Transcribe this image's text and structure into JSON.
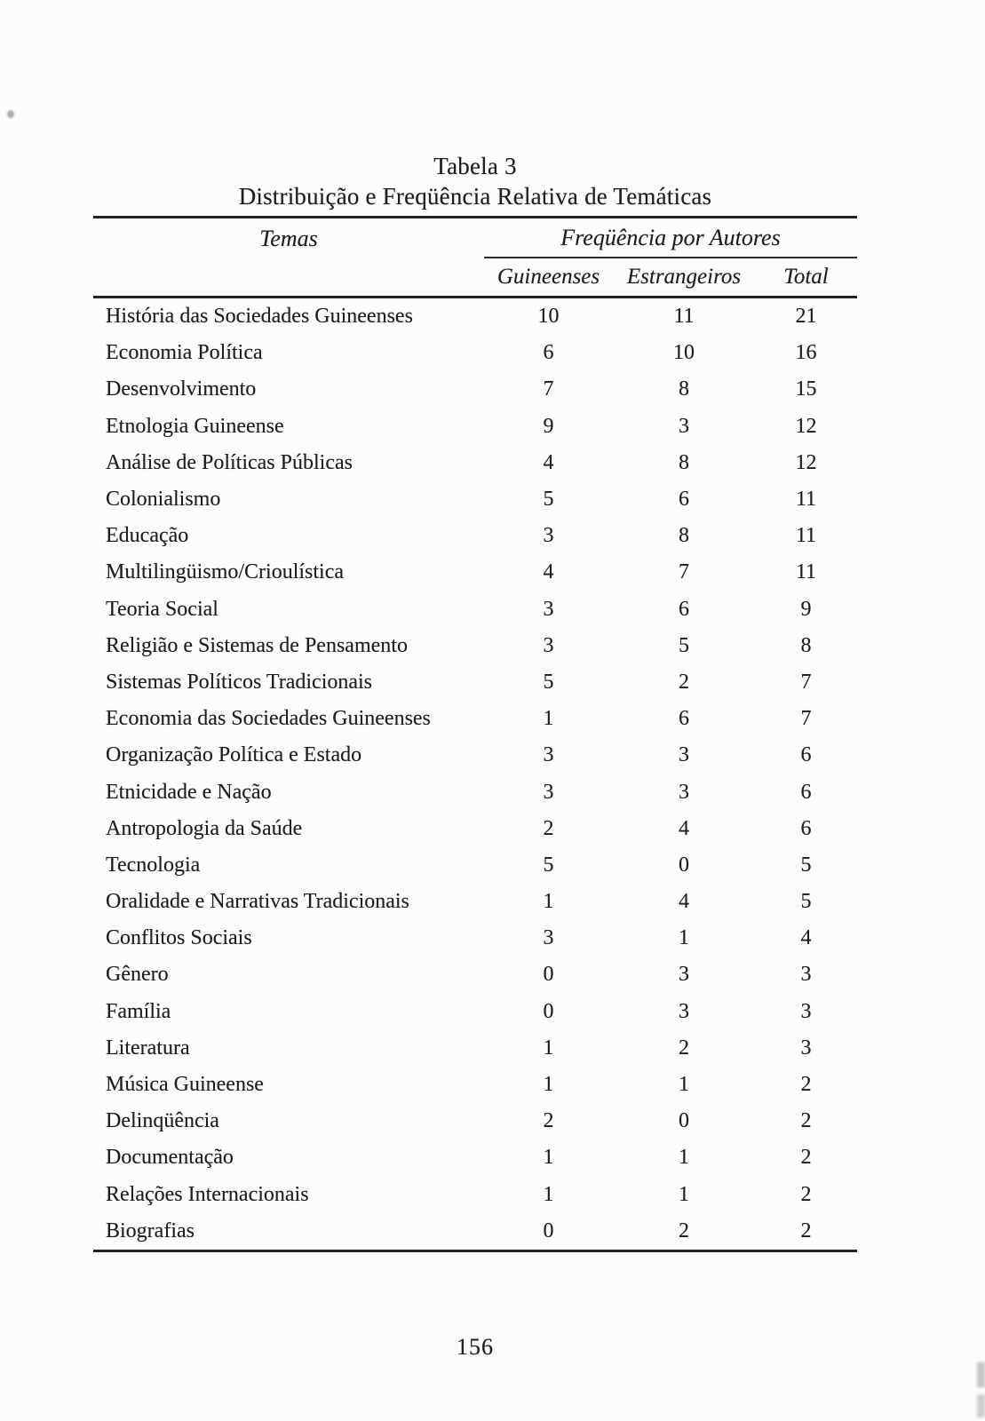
{
  "page": {
    "number": "156",
    "background_color": "#fcfcfa",
    "ink_color": "#1e1e1e"
  },
  "table": {
    "title_line1": "Tabela 3",
    "title_line2": "Distribuição e Freqüência Relativa de Temáticas",
    "header": {
      "temas": "Temas",
      "group": "Freqüência por Autores",
      "columns": [
        "Guineenses",
        "Estrangeiros",
        "Total"
      ]
    },
    "rows": [
      [
        "História das Sociedades Guineenses",
        "10",
        "11",
        "21"
      ],
      [
        "Economia Política",
        "6",
        "10",
        "16"
      ],
      [
        "Desenvolvimento",
        "7",
        "8",
        "15"
      ],
      [
        "Etnologia Guineense",
        "9",
        "3",
        "12"
      ],
      [
        "Análise de Políticas Públicas",
        "4",
        "8",
        "12"
      ],
      [
        "Colonialismo",
        "5",
        "6",
        "11"
      ],
      [
        "Educação",
        "3",
        "8",
        "11"
      ],
      [
        "Multilingüismo/Crioulística",
        "4",
        "7",
        "11"
      ],
      [
        "Teoria Social",
        "3",
        "6",
        "9"
      ],
      [
        "Religião e Sistemas de Pensamento",
        "3",
        "5",
        "8"
      ],
      [
        "Sistemas Políticos Tradicionais",
        "5",
        "2",
        "7"
      ],
      [
        "Economia das Sociedades Guineenses",
        "1",
        "6",
        "7"
      ],
      [
        "Organização Política e Estado",
        "3",
        "3",
        "6"
      ],
      [
        "Etnicidade e Nação",
        "3",
        "3",
        "6"
      ],
      [
        "Antropologia da Saúde",
        "2",
        "4",
        "6"
      ],
      [
        "Tecnologia",
        "5",
        "0",
        "5"
      ],
      [
        "Oralidade e Narrativas Tradicionais",
        "1",
        "4",
        "5"
      ],
      [
        "Conflitos Sociais",
        "3",
        "1",
        "4"
      ],
      [
        "Gênero",
        "0",
        "3",
        "3"
      ],
      [
        "Família",
        "0",
        "3",
        "3"
      ],
      [
        "Literatura",
        "1",
        "2",
        "3"
      ],
      [
        "Música Guineense",
        "1",
        "1",
        "2"
      ],
      [
        "Delinqüência",
        "2",
        "0",
        "2"
      ],
      [
        "Documentação",
        "1",
        "1",
        "2"
      ],
      [
        "Relações Internacionais",
        "1",
        "1",
        "2"
      ],
      [
        "Biografias",
        "0",
        "2",
        "2"
      ]
    ]
  }
}
